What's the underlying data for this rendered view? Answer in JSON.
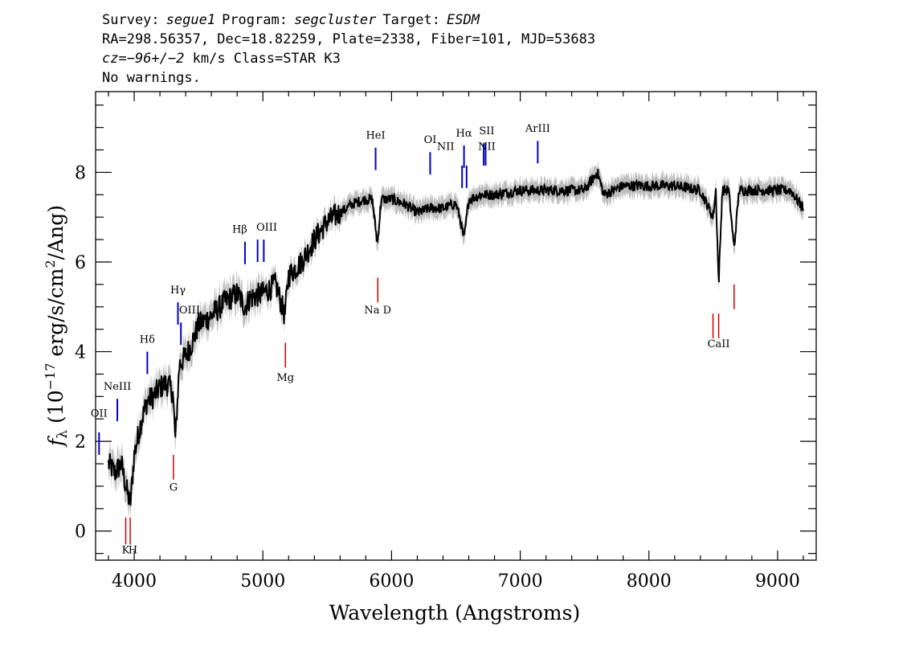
{
  "header": {
    "line1": {
      "survey_label": "Survey:",
      "survey": "segue1",
      "program_label": "Program:",
      "program": "segcluster",
      "target_label": "Target:",
      "target": "ESDM"
    },
    "line2": "RA=298.56357, Dec=18.82259, Plate=2338, Fiber=101, MJD=53683",
    "line3": {
      "cz_label": "cz=",
      "cz_value": "−96+/−2",
      "cz_rest": " km/s Class=STAR K3"
    },
    "line4": "No warnings."
  },
  "chart_data": {
    "type": "line",
    "xlabel": "Wavelength (Angstroms)",
    "ylabel": {
      "f": "f",
      "sub": "λ",
      "pre": "(10",
      "exp1": "−17",
      "mid": " erg/s/cm",
      "exp2": "2",
      "post": "/Ang)"
    },
    "xlim": [
      3700,
      9300
    ],
    "ylim": [
      -0.65,
      9.8
    ],
    "xticks": [
      4000,
      5000,
      6000,
      7000,
      8000,
      9000
    ],
    "yticks": [
      0,
      2,
      4,
      6,
      8
    ],
    "xminor_step": 200,
    "yminor_step": 0.5,
    "colors": {
      "flux": "#000000",
      "error_band": "#bdbdbd",
      "emission": "#0000cc",
      "absorption": "#cc0000"
    },
    "spectrum_knots": [
      [
        3800,
        1.5
      ],
      [
        3850,
        1.3
      ],
      [
        3900,
        1.5
      ],
      [
        3950,
        0.8
      ],
      [
        3970,
        0.6
      ],
      [
        4000,
        1.7
      ],
      [
        4050,
        2.4
      ],
      [
        4100,
        2.9
      ],
      [
        4150,
        3.0
      ],
      [
        4200,
        3.2
      ],
      [
        4250,
        3.3
      ],
      [
        4300,
        3.1
      ],
      [
        4320,
        2.0
      ],
      [
        4350,
        3.7
      ],
      [
        4400,
        3.9
      ],
      [
        4450,
        4.2
      ],
      [
        4500,
        4.6
      ],
      [
        4600,
        4.8
      ],
      [
        4700,
        5.1
      ],
      [
        4800,
        5.3
      ],
      [
        4860,
        5.0
      ],
      [
        4900,
        5.2
      ],
      [
        5000,
        5.3
      ],
      [
        5100,
        5.5
      ],
      [
        5170,
        4.8
      ],
      [
        5200,
        5.7
      ],
      [
        5300,
        6.0
      ],
      [
        5400,
        6.5
      ],
      [
        5500,
        6.9
      ],
      [
        5600,
        7.1
      ],
      [
        5700,
        7.3
      ],
      [
        5800,
        7.4
      ],
      [
        5850,
        7.4
      ],
      [
        5890,
        6.4
      ],
      [
        5920,
        7.4
      ],
      [
        6000,
        7.4
      ],
      [
        6100,
        7.3
      ],
      [
        6200,
        7.1
      ],
      [
        6300,
        7.2
      ],
      [
        6400,
        7.2
      ],
      [
        6500,
        7.3
      ],
      [
        6530,
        7.0
      ],
      [
        6563,
        6.5
      ],
      [
        6600,
        7.4
      ],
      [
        6700,
        7.5
      ],
      [
        6800,
        7.5
      ],
      [
        7000,
        7.6
      ],
      [
        7200,
        7.6
      ],
      [
        7400,
        7.6
      ],
      [
        7500,
        7.6
      ],
      [
        7600,
        8.0
      ],
      [
        7650,
        7.5
      ],
      [
        7800,
        7.7
      ],
      [
        8000,
        7.7
      ],
      [
        8200,
        7.7
      ],
      [
        8400,
        7.6
      ],
      [
        8498,
        7.0
      ],
      [
        8520,
        7.6
      ],
      [
        8542,
        5.5
      ],
      [
        8570,
        7.6
      ],
      [
        8620,
        7.6
      ],
      [
        8662,
        6.3
      ],
      [
        8700,
        7.6
      ],
      [
        8800,
        7.6
      ],
      [
        8900,
        7.6
      ],
      [
        9000,
        7.6
      ],
      [
        9100,
        7.6
      ],
      [
        9150,
        7.4
      ],
      [
        9200,
        7.2
      ]
    ],
    "emission_lines": [
      {
        "label": "OII",
        "x": 3727,
        "y0": 1.7,
        "y1": 2.2,
        "ly": 2.55,
        "lx": 3727
      },
      {
        "label": "NeIII",
        "x": 3869,
        "y0": 2.45,
        "y1": 2.95,
        "ly": 3.15,
        "lx": 3869
      },
      {
        "label": "Hδ",
        "x": 4102,
        "y0": 3.5,
        "y1": 4.0,
        "ly": 4.2,
        "lx": 4102
      },
      {
        "label": "Hγ",
        "x": 4340,
        "y0": 4.6,
        "y1": 5.1,
        "ly": 5.3,
        "lx": 4340
      },
      {
        "label": "OIII",
        "x": 4363,
        "y0": 4.15,
        "y1": 4.65,
        "ly": 4.85,
        "lx": 4430
      },
      {
        "label": "Hβ",
        "x": 4861,
        "y0": 5.95,
        "y1": 6.45,
        "ly": 6.65,
        "lx": 4820
      },
      {
        "label": "OIII",
        "x": 4959,
        "y0": 6.0,
        "y1": 6.5,
        "ly": 6.7,
        "lx": 5030
      },
      {
        "label": "OIII",
        "x": 5007,
        "y0": 6.0,
        "y1": 6.5,
        "ly": 6.7,
        "lx": null
      },
      {
        "label": "HeI",
        "x": 5876,
        "y0": 8.05,
        "y1": 8.55,
        "ly": 8.75,
        "lx": 5876
      },
      {
        "label": "OI",
        "x": 6300,
        "y0": 7.95,
        "y1": 8.45,
        "ly": 8.65,
        "lx": 6300
      },
      {
        "label": "NII",
        "x": 6548,
        "y0": 7.65,
        "y1": 8.15,
        "ly": 8.5,
        "lx": 6420
      },
      {
        "label": "Hα",
        "x": 6563,
        "y0": 8.1,
        "y1": 8.6,
        "ly": 8.8,
        "lx": 6563
      },
      {
        "label": "NII",
        "x": 6583,
        "y0": 7.65,
        "y1": 8.15,
        "ly": null,
        "lx": null
      },
      {
        "label": "SII",
        "x": 6716,
        "y0": 8.15,
        "y1": 8.65,
        "ly": 8.85,
        "lx": 6740
      },
      {
        "label": "NII",
        "x": 6731,
        "y0": 8.15,
        "y1": 8.65,
        "ly": 8.5,
        "lx": 6740
      },
      {
        "label": "ArIII",
        "x": 7136,
        "y0": 8.2,
        "y1": 8.7,
        "ly": 8.9,
        "lx": 7136
      }
    ],
    "absorption_lines": [
      {
        "label": "K",
        "x": 3934,
        "y0": -0.3,
        "y1": 0.3,
        "ly": -0.5,
        "lx": 3934
      },
      {
        "label": "H",
        "x": 3969,
        "y0": -0.3,
        "y1": 0.3,
        "ly": -0.5,
        "lx": 3990
      },
      {
        "label": "G",
        "x": 4305,
        "y0": 1.15,
        "y1": 1.7,
        "ly": 0.9,
        "lx": 4305
      },
      {
        "label": "Mg",
        "x": 5175,
        "y0": 3.65,
        "y1": 4.2,
        "ly": 3.35,
        "lx": 5175
      },
      {
        "label": "Na D",
        "x": 5893,
        "y0": 5.1,
        "y1": 5.65,
        "ly": 4.85,
        "lx": 5893
      },
      {
        "label": "CaII",
        "x": 8498,
        "y0": 4.3,
        "y1": 4.85,
        "ly": 4.1,
        "lx": 8542
      },
      {
        "label": "CaII",
        "x": 8542,
        "y0": 4.3,
        "y1": 4.85,
        "ly": null,
        "lx": null
      },
      {
        "label": "CaII",
        "x": 8662,
        "y0": 4.95,
        "y1": 5.5,
        "ly": null,
        "lx": null
      }
    ]
  }
}
